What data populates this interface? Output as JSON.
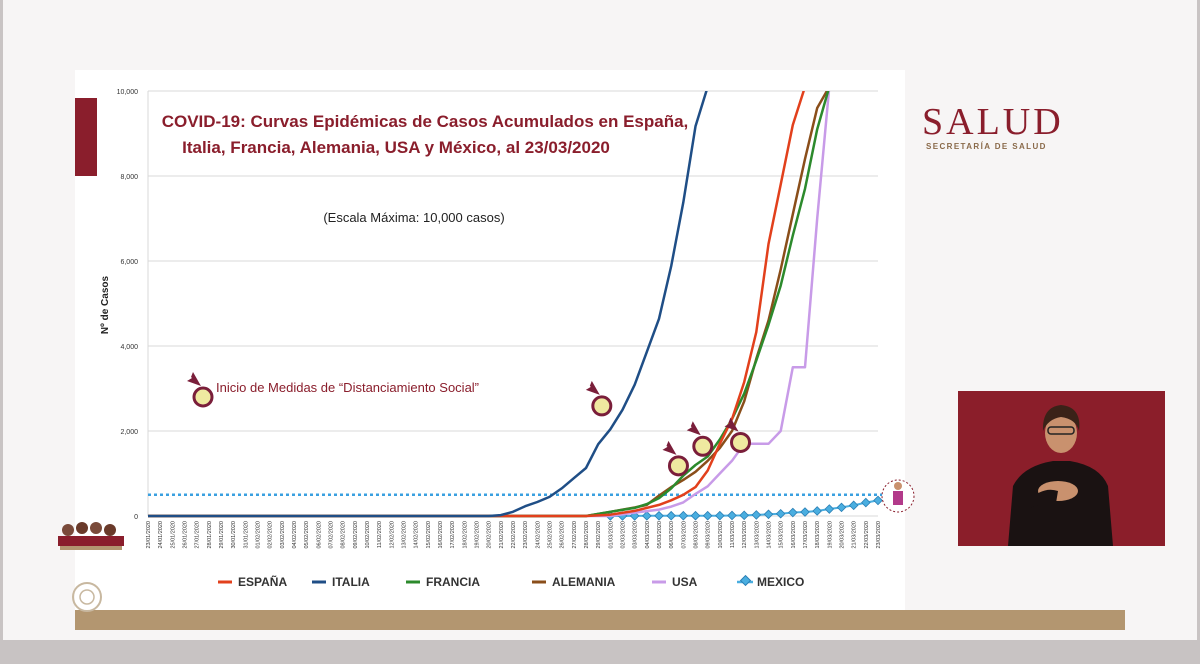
{
  "brand": {
    "title": "SALUD",
    "subtitle": "SECRETARÍA DE SALUD",
    "color": "#8a1e2c"
  },
  "chart_data": {
    "type": "line",
    "title_line1": "COVID-19: Curvas Epidémicas de Casos Acumulados en España,",
    "title_line2": "Italia, Francia, Alemania, USA y México, al 23/03/2020",
    "subtitle": "(Escala Máxima: 10,000 casos)",
    "ylabel": "Nº de Casos",
    "ylim": [
      0,
      10000
    ],
    "yticks": [
      0,
      2000,
      4000,
      6000,
      8000,
      10000
    ],
    "ytick_labels": [
      "0",
      "2,000",
      "4,000",
      "6,000",
      "8,000",
      "10,000"
    ],
    "annotation": "Inicio de  Medidas de “Distanciamiento Social”",
    "reference_line_value": 500,
    "grid": true,
    "legend_position": "bottom",
    "x_labels": [
      "23/01/2020",
      "24/01/2020",
      "25/01/2020",
      "26/01/2020",
      "27/01/2020",
      "28/01/2020",
      "29/01/2020",
      "30/01/2020",
      "31/01/2020",
      "01/02/2020",
      "02/02/2020",
      "03/02/2020",
      "04/02/2020",
      "05/02/2020",
      "06/02/2020",
      "07/02/2020",
      "08/02/2020",
      "09/02/2020",
      "10/02/2020",
      "11/02/2020",
      "12/02/2020",
      "13/02/2020",
      "14/02/2020",
      "15/02/2020",
      "16/02/2020",
      "17/02/2020",
      "18/02/2020",
      "19/02/2020",
      "20/02/2020",
      "21/02/2020",
      "22/02/2020",
      "23/02/2020",
      "24/02/2020",
      "25/02/2020",
      "26/02/2020",
      "27/02/2020",
      "28/02/2020",
      "29/02/2020",
      "01/03/2020",
      "02/03/2020",
      "03/03/2020",
      "04/03/2020",
      "05/03/2020",
      "06/03/2020",
      "07/03/2020",
      "08/03/2020",
      "09/03/2020",
      "10/03/2020",
      "11/03/2020",
      "12/03/2020",
      "13/03/2020",
      "14/03/2020",
      "15/03/2020",
      "16/03/2020",
      "17/03/2020",
      "18/03/2020",
      "19/03/2020",
      "20/03/2020",
      "21/03/2020",
      "22/03/2020",
      "23/03/2020"
    ],
    "series": [
      {
        "name": "ESPAÑA",
        "color": "#e2401c",
        "points": [
          [
            0,
            0
          ],
          [
            36,
            0
          ],
          [
            38,
            30
          ],
          [
            40,
            120
          ],
          [
            42,
            260
          ],
          [
            43,
            370
          ],
          [
            44,
            500
          ],
          [
            45,
            680
          ],
          [
            46,
            1070
          ],
          [
            47,
            1700
          ],
          [
            48,
            2280
          ],
          [
            49,
            3150
          ],
          [
            50,
            4330
          ],
          [
            51,
            6400
          ],
          [
            52,
            7800
          ],
          [
            53,
            9200
          ],
          [
            54,
            10100
          ]
        ]
      },
      {
        "name": "ITALIA",
        "color": "#1f4e86",
        "points": [
          [
            0,
            0
          ],
          [
            28,
            0
          ],
          [
            29,
            20
          ],
          [
            30,
            100
          ],
          [
            31,
            230
          ],
          [
            32,
            330
          ],
          [
            33,
            450
          ],
          [
            34,
            650
          ],
          [
            35,
            890
          ],
          [
            36,
            1130
          ],
          [
            37,
            1690
          ],
          [
            38,
            2040
          ],
          [
            39,
            2500
          ],
          [
            40,
            3090
          ],
          [
            41,
            3860
          ],
          [
            42,
            4640
          ],
          [
            43,
            5880
          ],
          [
            44,
            7380
          ],
          [
            45,
            9170
          ],
          [
            46,
            10100
          ]
        ]
      },
      {
        "name": "FRANCIA",
        "color": "#2c8a2c",
        "points": [
          [
            0,
            0
          ],
          [
            36,
            0
          ],
          [
            38,
            100
          ],
          [
            40,
            190
          ],
          [
            41,
            280
          ],
          [
            42,
            420
          ],
          [
            43,
            650
          ],
          [
            44,
            950
          ],
          [
            45,
            1200
          ],
          [
            46,
            1400
          ],
          [
            47,
            1800
          ],
          [
            48,
            2280
          ],
          [
            49,
            2880
          ],
          [
            50,
            3660
          ],
          [
            51,
            4500
          ],
          [
            52,
            5420
          ],
          [
            53,
            6600
          ],
          [
            54,
            7700
          ],
          [
            55,
            9100
          ],
          [
            56,
            10100
          ]
        ]
      },
      {
        "name": "ALEMANIA",
        "color": "#8a4e1a",
        "points": [
          [
            0,
            0
          ],
          [
            36,
            0
          ],
          [
            38,
            100
          ],
          [
            40,
            200
          ],
          [
            41,
            260
          ],
          [
            42,
            480
          ],
          [
            43,
            680
          ],
          [
            44,
            850
          ],
          [
            45,
            1040
          ],
          [
            46,
            1300
          ],
          [
            47,
            1600
          ],
          [
            48,
            2000
          ],
          [
            49,
            2700
          ],
          [
            50,
            3700
          ],
          [
            51,
            4600
          ],
          [
            52,
            5800
          ],
          [
            53,
            7100
          ],
          [
            54,
            8400
          ],
          [
            55,
            9600
          ],
          [
            56,
            10100
          ]
        ]
      },
      {
        "name": "USA",
        "color": "#c89be8",
        "points": [
          [
            0,
            0
          ],
          [
            38,
            0
          ],
          [
            40,
            80
          ],
          [
            42,
            150
          ],
          [
            43,
            220
          ],
          [
            44,
            320
          ],
          [
            45,
            520
          ],
          [
            46,
            700
          ],
          [
            47,
            1000
          ],
          [
            48,
            1300
          ],
          [
            49,
            1700
          ],
          [
            50,
            1700
          ],
          [
            51,
            1700
          ],
          [
            52,
            2000
          ],
          [
            53,
            3500
          ],
          [
            54,
            3500
          ],
          [
            55,
            7000
          ],
          [
            56,
            10100
          ]
        ]
      },
      {
        "name": "MEXICO",
        "color": "#4aaee0",
        "marker": true,
        "points": [
          [
            38,
            0
          ],
          [
            39,
            1
          ],
          [
            40,
            2
          ],
          [
            41,
            4
          ],
          [
            42,
            5
          ],
          [
            43,
            6
          ],
          [
            44,
            7
          ],
          [
            45,
            7
          ],
          [
            46,
            7
          ],
          [
            47,
            8
          ],
          [
            48,
            12
          ],
          [
            49,
            15
          ],
          [
            50,
            26
          ],
          [
            51,
            41
          ],
          [
            52,
            53
          ],
          [
            53,
            82
          ],
          [
            54,
            93
          ],
          [
            55,
            118
          ],
          [
            56,
            164
          ],
          [
            57,
            203
          ],
          [
            58,
            251
          ],
          [
            59,
            316
          ],
          [
            60,
            367
          ]
        ]
      }
    ],
    "markers": [
      {
        "series": "ITALIA",
        "x": 37.3,
        "y": 2590
      },
      {
        "series": "FRANCIA",
        "x": 43.6,
        "y": 1180
      },
      {
        "series": "ESPAÑA",
        "x": 45.6,
        "y": 1640
      },
      {
        "series": "USA",
        "x": 48.7,
        "y": 1730
      }
    ]
  }
}
